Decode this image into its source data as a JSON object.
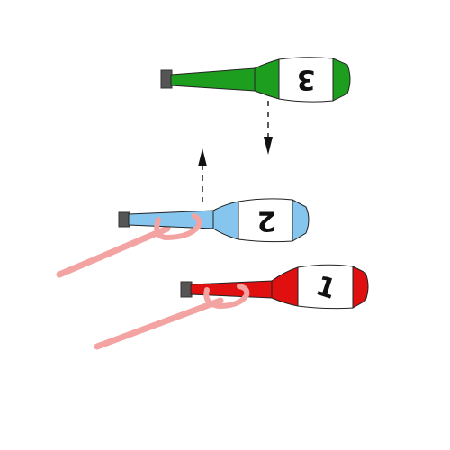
{
  "diagram": {
    "clubs": [
      {
        "id": "club-3",
        "number": "3",
        "color": "#1e9e1e",
        "dark": "#0f6a0f"
      },
      {
        "id": "club-2",
        "number": "2",
        "color": "#86c5ee",
        "dark": "#3f8dc2"
      },
      {
        "id": "club-1",
        "number": "1",
        "color": "#e01010",
        "dark": "#8a0000"
      }
    ],
    "knob_color": "#555555",
    "hand_color": "#f4a3a3",
    "arrows": [
      {
        "id": "arrow-down",
        "from": "club-3",
        "to": "club-2",
        "direction": "down"
      },
      {
        "id": "arrow-up",
        "from": "club-2",
        "to": "club-3",
        "direction": "up"
      }
    ]
  }
}
